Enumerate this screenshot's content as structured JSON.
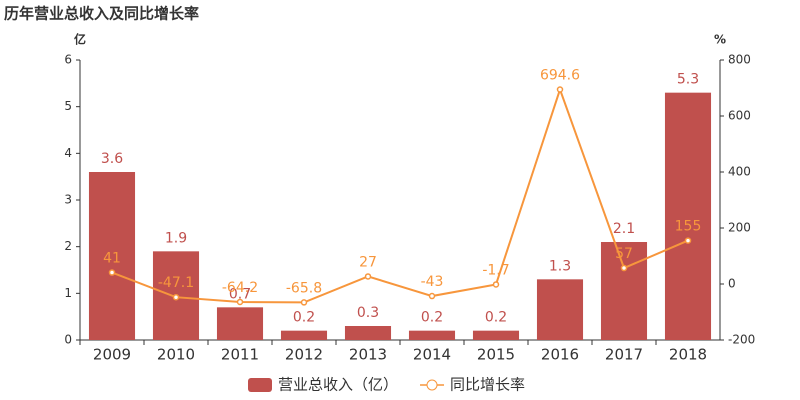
{
  "chart_data": {
    "type": "bar",
    "title": "历年营业总收入及同比增长率",
    "y_label": "亿",
    "y2_label": "%",
    "categories": [
      "2009",
      "2010",
      "2011",
      "2012",
      "2013",
      "2014",
      "2015",
      "2016",
      "2017",
      "2018"
    ],
    "series": [
      {
        "name": "营业总收入（亿）",
        "type": "bar",
        "color": "#c0504d",
        "values": [
          3.6,
          1.9,
          0.7,
          0.2,
          0.3,
          0.2,
          0.2,
          1.3,
          2.1,
          5.3
        ]
      },
      {
        "name": "同比增长率",
        "type": "line",
        "axis": "y2",
        "color": "#f7963c",
        "values": [
          41,
          -47.1,
          -64.2,
          -65.8,
          27,
          -43,
          -1.7,
          694.6,
          57,
          155
        ]
      }
    ],
    "ylim": [
      0,
      6
    ],
    "yticks": [
      0,
      1,
      2,
      3,
      4,
      5,
      6
    ],
    "y2lim": [
      -200,
      800
    ],
    "y2ticks": [
      -200,
      0,
      200,
      400,
      600,
      800
    ],
    "grid": false
  }
}
